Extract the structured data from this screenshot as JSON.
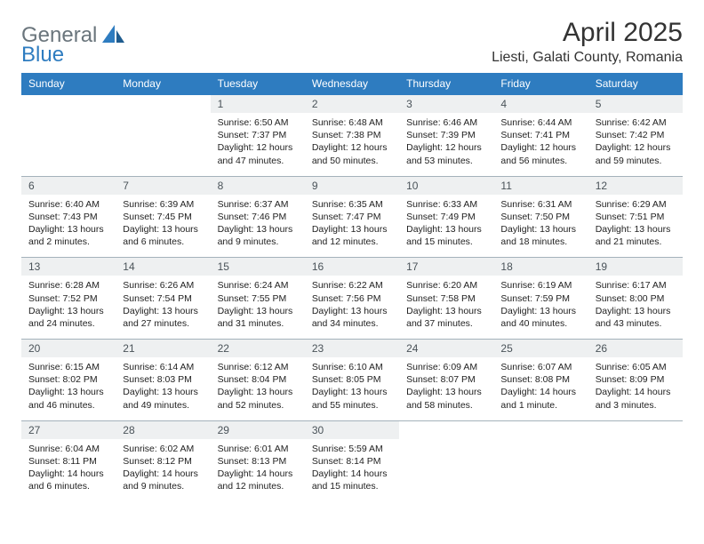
{
  "brand": {
    "part1": "General",
    "part2": "Blue"
  },
  "title": "April 2025",
  "location": "Liesti, Galati County, Romania",
  "colors": {
    "header_bg": "#2e7cc0",
    "header_text": "#ffffff",
    "daynum_bg": "#eef0f1",
    "daynum_text": "#4a5359",
    "cell_border": "#a4b2bb",
    "body_text": "#222222"
  },
  "layout": {
    "columns": 7,
    "rows": 5
  },
  "typography": {
    "title_fontsize": 30,
    "location_fontsize": 16,
    "dayhead_fontsize": 12,
    "cell_fontsize": 10.5
  },
  "day_headers": [
    "Sunday",
    "Monday",
    "Tuesday",
    "Wednesday",
    "Thursday",
    "Friday",
    "Saturday"
  ],
  "weeks": [
    [
      null,
      null,
      {
        "n": "1",
        "sr": "Sunrise: 6:50 AM",
        "ss": "Sunset: 7:37 PM",
        "dl": "Daylight: 12 hours and 47 minutes."
      },
      {
        "n": "2",
        "sr": "Sunrise: 6:48 AM",
        "ss": "Sunset: 7:38 PM",
        "dl": "Daylight: 12 hours and 50 minutes."
      },
      {
        "n": "3",
        "sr": "Sunrise: 6:46 AM",
        "ss": "Sunset: 7:39 PM",
        "dl": "Daylight: 12 hours and 53 minutes."
      },
      {
        "n": "4",
        "sr": "Sunrise: 6:44 AM",
        "ss": "Sunset: 7:41 PM",
        "dl": "Daylight: 12 hours and 56 minutes."
      },
      {
        "n": "5",
        "sr": "Sunrise: 6:42 AM",
        "ss": "Sunset: 7:42 PM",
        "dl": "Daylight: 12 hours and 59 minutes."
      }
    ],
    [
      {
        "n": "6",
        "sr": "Sunrise: 6:40 AM",
        "ss": "Sunset: 7:43 PM",
        "dl": "Daylight: 13 hours and 2 minutes."
      },
      {
        "n": "7",
        "sr": "Sunrise: 6:39 AM",
        "ss": "Sunset: 7:45 PM",
        "dl": "Daylight: 13 hours and 6 minutes."
      },
      {
        "n": "8",
        "sr": "Sunrise: 6:37 AM",
        "ss": "Sunset: 7:46 PM",
        "dl": "Daylight: 13 hours and 9 minutes."
      },
      {
        "n": "9",
        "sr": "Sunrise: 6:35 AM",
        "ss": "Sunset: 7:47 PM",
        "dl": "Daylight: 13 hours and 12 minutes."
      },
      {
        "n": "10",
        "sr": "Sunrise: 6:33 AM",
        "ss": "Sunset: 7:49 PM",
        "dl": "Daylight: 13 hours and 15 minutes."
      },
      {
        "n": "11",
        "sr": "Sunrise: 6:31 AM",
        "ss": "Sunset: 7:50 PM",
        "dl": "Daylight: 13 hours and 18 minutes."
      },
      {
        "n": "12",
        "sr": "Sunrise: 6:29 AM",
        "ss": "Sunset: 7:51 PM",
        "dl": "Daylight: 13 hours and 21 minutes."
      }
    ],
    [
      {
        "n": "13",
        "sr": "Sunrise: 6:28 AM",
        "ss": "Sunset: 7:52 PM",
        "dl": "Daylight: 13 hours and 24 minutes."
      },
      {
        "n": "14",
        "sr": "Sunrise: 6:26 AM",
        "ss": "Sunset: 7:54 PM",
        "dl": "Daylight: 13 hours and 27 minutes."
      },
      {
        "n": "15",
        "sr": "Sunrise: 6:24 AM",
        "ss": "Sunset: 7:55 PM",
        "dl": "Daylight: 13 hours and 31 minutes."
      },
      {
        "n": "16",
        "sr": "Sunrise: 6:22 AM",
        "ss": "Sunset: 7:56 PM",
        "dl": "Daylight: 13 hours and 34 minutes."
      },
      {
        "n": "17",
        "sr": "Sunrise: 6:20 AM",
        "ss": "Sunset: 7:58 PM",
        "dl": "Daylight: 13 hours and 37 minutes."
      },
      {
        "n": "18",
        "sr": "Sunrise: 6:19 AM",
        "ss": "Sunset: 7:59 PM",
        "dl": "Daylight: 13 hours and 40 minutes."
      },
      {
        "n": "19",
        "sr": "Sunrise: 6:17 AM",
        "ss": "Sunset: 8:00 PM",
        "dl": "Daylight: 13 hours and 43 minutes."
      }
    ],
    [
      {
        "n": "20",
        "sr": "Sunrise: 6:15 AM",
        "ss": "Sunset: 8:02 PM",
        "dl": "Daylight: 13 hours and 46 minutes."
      },
      {
        "n": "21",
        "sr": "Sunrise: 6:14 AM",
        "ss": "Sunset: 8:03 PM",
        "dl": "Daylight: 13 hours and 49 minutes."
      },
      {
        "n": "22",
        "sr": "Sunrise: 6:12 AM",
        "ss": "Sunset: 8:04 PM",
        "dl": "Daylight: 13 hours and 52 minutes."
      },
      {
        "n": "23",
        "sr": "Sunrise: 6:10 AM",
        "ss": "Sunset: 8:05 PM",
        "dl": "Daylight: 13 hours and 55 minutes."
      },
      {
        "n": "24",
        "sr": "Sunrise: 6:09 AM",
        "ss": "Sunset: 8:07 PM",
        "dl": "Daylight: 13 hours and 58 minutes."
      },
      {
        "n": "25",
        "sr": "Sunrise: 6:07 AM",
        "ss": "Sunset: 8:08 PM",
        "dl": "Daylight: 14 hours and 1 minute."
      },
      {
        "n": "26",
        "sr": "Sunrise: 6:05 AM",
        "ss": "Sunset: 8:09 PM",
        "dl": "Daylight: 14 hours and 3 minutes."
      }
    ],
    [
      {
        "n": "27",
        "sr": "Sunrise: 6:04 AM",
        "ss": "Sunset: 8:11 PM",
        "dl": "Daylight: 14 hours and 6 minutes."
      },
      {
        "n": "28",
        "sr": "Sunrise: 6:02 AM",
        "ss": "Sunset: 8:12 PM",
        "dl": "Daylight: 14 hours and 9 minutes."
      },
      {
        "n": "29",
        "sr": "Sunrise: 6:01 AM",
        "ss": "Sunset: 8:13 PM",
        "dl": "Daylight: 14 hours and 12 minutes."
      },
      {
        "n": "30",
        "sr": "Sunrise: 5:59 AM",
        "ss": "Sunset: 8:14 PM",
        "dl": "Daylight: 14 hours and 15 minutes."
      },
      null,
      null,
      null
    ]
  ]
}
